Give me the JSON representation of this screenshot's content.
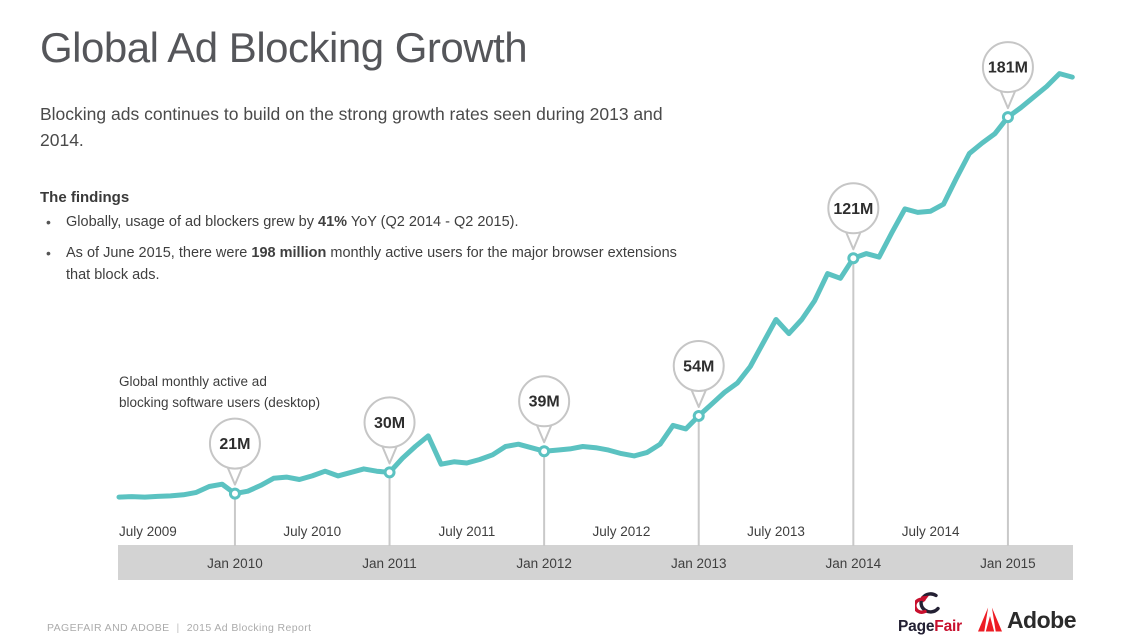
{
  "page": {
    "title": "Global Ad Blocking Growth",
    "subtitle": "Blocking ads continues to build on the strong growth rates seen during 2013 and 2014.",
    "findings_heading": "The findings",
    "bullets": [
      {
        "pre": "Globally, usage of ad blockers grew by ",
        "bold": "41%",
        "post": " YoY (Q2 2014 - Q2 2015)."
      },
      {
        "pre": "As of June 2015, there were ",
        "bold": "198 million",
        "post": " monthly active users for the major browser extensions that block ads."
      }
    ],
    "footer": {
      "left": "PAGEFAIR AND ADOBE",
      "divider": "|",
      "right": "2015 Ad Blocking Report"
    },
    "logos": {
      "pagefair": {
        "part1": "Page",
        "part2": "Fair"
      },
      "adobe": {
        "text": "Adobe"
      }
    },
    "colors": {
      "pagefair_dark": "#232033",
      "pagefair_red": "#c8102e",
      "adobe_red": "#ed1c24"
    }
  },
  "chart_data": {
    "type": "line",
    "annotation": [
      "Global monthly active ad",
      "blocking software users (desktop)"
    ],
    "unit": "millions of monthly active users",
    "ylim": [
      0,
      210
    ],
    "line_color": "#5BC2C1",
    "band_color": "#D3D3D3",
    "stem_color": "#C9C9C9",
    "callout_border": "#C6C6C6",
    "months": [
      "Apr 2009",
      "May 2009",
      "Jun 2009",
      "Jul 2009",
      "Aug 2009",
      "Sep 2009",
      "Oct 2009",
      "Nov 2009",
      "Dec 2009",
      "Jan 2010",
      "Feb 2010",
      "Mar 2010",
      "Apr 2010",
      "May 2010",
      "Jun 2010",
      "Jul 2010",
      "Aug 2010",
      "Sep 2010",
      "Oct 2010",
      "Nov 2010",
      "Dec 2010",
      "Jan 2011",
      "Feb 2011",
      "Mar 2011",
      "Apr 2011",
      "May 2011",
      "Jun 2011",
      "Jul 2011",
      "Aug 2011",
      "Sep 2011",
      "Oct 2011",
      "Nov 2011",
      "Dec 2011",
      "Jan 2012",
      "Feb 2012",
      "Mar 2012",
      "Apr 2012",
      "May 2012",
      "Jun 2012",
      "Jul 2012",
      "Aug 2012",
      "Sep 2012",
      "Oct 2012",
      "Nov 2012",
      "Dec 2012",
      "Jan 2013",
      "Feb 2013",
      "Mar 2013",
      "Apr 2013",
      "May 2013",
      "Jun 2013",
      "Jul 2013",
      "Aug 2013",
      "Sep 2013",
      "Oct 2013",
      "Nov 2013",
      "Dec 2013",
      "Jan 2014",
      "Feb 2014",
      "Mar 2014",
      "Apr 2014",
      "May 2014",
      "Jun 2014",
      "Jul 2014",
      "Aug 2014",
      "Sep 2014",
      "Oct 2014",
      "Nov 2014",
      "Dec 2014",
      "Jan 2015",
      "Feb 2015",
      "Mar 2015",
      "Apr 2015",
      "May 2015",
      "Jun 2015"
    ],
    "values": [
      19.5,
      19.7,
      19.5,
      19.8,
      20,
      20.5,
      21.5,
      24,
      25,
      21,
      22,
      24.5,
      27.5,
      28,
      27,
      28.5,
      30.5,
      28.5,
      30,
      31.5,
      30.5,
      30,
      36,
      41,
      45.5,
      33.5,
      34.5,
      34,
      35.5,
      37.5,
      41,
      42,
      40.5,
      39,
      39.5,
      40,
      41,
      40.5,
      39.5,
      38,
      37,
      38.5,
      42,
      50,
      48.5,
      54,
      59,
      64,
      68,
      75,
      85,
      95,
      89,
      95,
      103,
      114.5,
      112.5,
      121,
      123,
      121.5,
      132,
      142,
      140.5,
      141,
      144,
      155,
      165.5,
      170,
      174,
      181,
      185,
      189.5,
      194,
      199.5,
      198
    ],
    "callouts": [
      {
        "month": "Jan 2010",
        "label": "21M",
        "value": 21
      },
      {
        "month": "Jan 2011",
        "label": "30M",
        "value": 30
      },
      {
        "month": "Jan 2012",
        "label": "39M",
        "value": 39
      },
      {
        "month": "Jan 2013",
        "label": "54M",
        "value": 54
      },
      {
        "month": "Jan 2014",
        "label": "121M",
        "value": 121
      },
      {
        "month": "Jan 2015",
        "label": "181M",
        "value": 181
      }
    ],
    "x_axis": {
      "top_labels": [
        "July 2009",
        "July 2010",
        "July 2011",
        "July 2012",
        "July 2013",
        "July 2014"
      ],
      "bottom_labels": [
        "Jan 2010",
        "Jan 2011",
        "Jan 2012",
        "Jan 2013",
        "Jan 2014",
        "Jan 2015"
      ]
    }
  }
}
